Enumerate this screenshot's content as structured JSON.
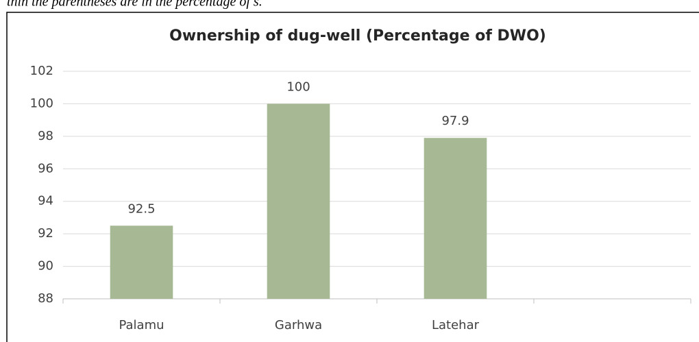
{
  "note": "thin the parentheses are in the percentage of s.",
  "chart_data": {
    "type": "bar",
    "title": "Ownership of dug-well (Percentage of DWO)",
    "categories": [
      "Palamu",
      "Garhwa",
      "Latehar",
      null
    ],
    "values": [
      92.5,
      100,
      97.9,
      null
    ],
    "color": "#a6b894",
    "ylim": [
      88,
      102
    ],
    "yticks": [
      88,
      90,
      92,
      94,
      96,
      98,
      100,
      102
    ],
    "grid": true
  }
}
